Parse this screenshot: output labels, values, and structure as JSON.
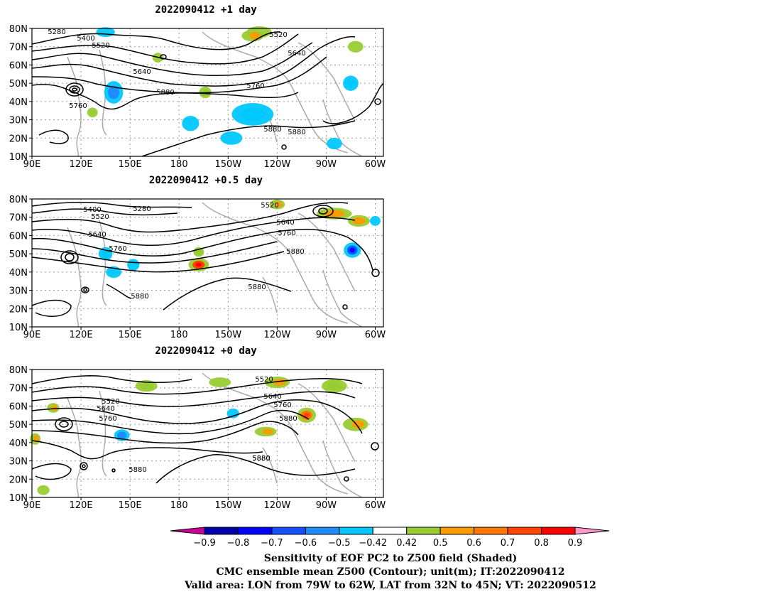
{
  "panels": [
    {
      "title": "2022090412 +1 day",
      "contour_labels": [
        "5280",
        "5400",
        "5520",
        "5520",
        "5640",
        "5640",
        "5760",
        "5760",
        "5880",
        "5880",
        "5880"
      ],
      "anomalies": [
        {
          "lon": 140,
          "lat": 45,
          "sign": "neg",
          "strength": 0.7,
          "size": [
            8,
            10
          ]
        },
        {
          "lon": 135,
          "lat": 78,
          "sign": "neg",
          "strength": 0.5,
          "size": [
            8,
            3
          ]
        },
        {
          "lon": 187,
          "lat": 28,
          "sign": "neg",
          "strength": 0.5,
          "size": [
            7,
            6
          ]
        },
        {
          "lon": 225,
          "lat": 33,
          "sign": "neg",
          "strength": 0.6,
          "size": [
            22,
            10
          ]
        },
        {
          "lon": 212,
          "lat": 20,
          "sign": "neg",
          "strength": 0.45,
          "size": [
            10,
            5
          ]
        },
        {
          "lon": 285,
          "lat": 50,
          "sign": "neg",
          "strength": 0.6,
          "size": [
            6,
            6
          ]
        },
        {
          "lon": 275,
          "lat": 17,
          "sign": "neg",
          "strength": 0.45,
          "size": [
            6,
            4
          ]
        },
        {
          "lon": 229,
          "lat": 78,
          "sign": "pos",
          "strength": 0.55,
          "size": [
            12,
            4
          ]
        },
        {
          "lon": 225,
          "lat": 76,
          "sign": "mix",
          "strength": 0.5,
          "size": [
            10,
            4
          ]
        },
        {
          "lon": 288,
          "lat": 70,
          "sign": "pos",
          "strength": 0.55,
          "size": [
            6,
            4
          ]
        },
        {
          "lon": 196,
          "lat": 45,
          "sign": "pos",
          "strength": 0.6,
          "size": [
            4,
            4
          ]
        },
        {
          "lon": 167,
          "lat": 64,
          "sign": "pos",
          "strength": 0.55,
          "size": [
            3,
            3
          ]
        },
        {
          "lon": 127,
          "lat": 34,
          "sign": "pos",
          "strength": 0.6,
          "size": [
            3,
            3
          ]
        }
      ]
    },
    {
      "title": "2022090412 +0.5 day",
      "contour_labels": [
        "5400",
        "5280",
        "5520",
        "5520",
        "5640",
        "5640",
        "5760",
        "5760",
        "5880",
        "5880",
        "5880"
      ],
      "anomalies": [
        {
          "lon": 135,
          "lat": 50,
          "sign": "neg",
          "strength": 0.6,
          "size": [
            5,
            5
          ]
        },
        {
          "lon": 140,
          "lat": 40,
          "sign": "neg",
          "strength": 0.5,
          "size": [
            6,
            4
          ]
        },
        {
          "lon": 152,
          "lat": 44,
          "sign": "neg",
          "strength": 0.5,
          "size": [
            4,
            4
          ]
        },
        {
          "lon": 286,
          "lat": 52,
          "sign": "neg",
          "strength": 0.75,
          "size": [
            7,
            6
          ]
        },
        {
          "lon": 300,
          "lat": 68,
          "sign": "neg",
          "strength": 0.5,
          "size": [
            3,
            3
          ]
        },
        {
          "lon": 192,
          "lat": 44,
          "sign": "pos",
          "strength": 0.85,
          "size": [
            9,
            5
          ]
        },
        {
          "lon": 192,
          "lat": 51,
          "sign": "pos",
          "strength": 0.6,
          "size": [
            3,
            3
          ]
        },
        {
          "lon": 275,
          "lat": 72,
          "sign": "pos",
          "strength": 0.65,
          "size": [
            18,
            4
          ]
        },
        {
          "lon": 290,
          "lat": 68,
          "sign": "pos",
          "strength": 0.7,
          "size": [
            10,
            4
          ]
        },
        {
          "lon": 240,
          "lat": 77,
          "sign": "mix",
          "strength": 0.5,
          "size": [
            6,
            3
          ]
        }
      ]
    },
    {
      "title": "2022090412 +0 day",
      "contour_labels": [
        "5520",
        "5520",
        "5640",
        "5640",
        "5760",
        "5760",
        "5880",
        "5880",
        "5880",
        "5880"
      ],
      "anomalies": [
        {
          "lon": 160,
          "lat": 71,
          "sign": "pos",
          "strength": 0.6,
          "size": [
            10,
            4
          ]
        },
        {
          "lon": 205,
          "lat": 73,
          "sign": "pos",
          "strength": 0.55,
          "size": [
            10,
            3
          ]
        },
        {
          "lon": 240,
          "lat": 73,
          "sign": "mix",
          "strength": 0.55,
          "size": [
            12,
            4
          ]
        },
        {
          "lon": 275,
          "lat": 71,
          "sign": "pos",
          "strength": 0.6,
          "size": [
            12,
            5
          ]
        },
        {
          "lon": 258,
          "lat": 55,
          "sign": "pos",
          "strength": 0.75,
          "size": [
            8,
            6
          ]
        },
        {
          "lon": 288,
          "lat": 50,
          "sign": "mix",
          "strength": 0.5,
          "size": [
            12,
            5
          ]
        },
        {
          "lon": 92,
          "lat": 42,
          "sign": "mix",
          "strength": 0.5,
          "size": [
            3,
            4
          ]
        },
        {
          "lon": 103,
          "lat": 59,
          "sign": "mix",
          "strength": 0.5,
          "size": [
            4,
            3
          ]
        },
        {
          "lon": 145,
          "lat": 44,
          "sign": "neg",
          "strength": 0.65,
          "size": [
            6,
            4
          ]
        },
        {
          "lon": 213,
          "lat": 56,
          "sign": "neg",
          "strength": 0.5,
          "size": [
            4,
            3
          ]
        },
        {
          "lon": 97,
          "lat": 14,
          "sign": "pos",
          "strength": 0.5,
          "size": [
            4,
            3
          ]
        },
        {
          "lon": 233,
          "lat": 46,
          "sign": "mix",
          "strength": 0.5,
          "size": [
            10,
            3
          ]
        }
      ]
    }
  ],
  "axes": {
    "lat_ticks": [
      "80N",
      "70N",
      "60N",
      "50N",
      "40N",
      "30N",
      "20N",
      "10N"
    ],
    "lon_ticks": [
      "90E",
      "120E",
      "150E",
      "180",
      "150W",
      "120W",
      "90W",
      "60W"
    ]
  },
  "colorbar": {
    "labels": [
      "−0.9",
      "−0.8",
      "−0.7",
      "−0.6",
      "−0.5",
      "−0.42",
      "0.42",
      "0.5",
      "0.6",
      "0.7",
      "0.8",
      "0.9"
    ],
    "colors": [
      "#0000aa",
      "#0000ff",
      "#1450ff",
      "#1e8cff",
      "#00c8ff",
      "#ffffff",
      "#99cc33",
      "#ff9900",
      "#ff7700",
      "#ff4400",
      "#ff0000"
    ],
    "left_arrow_color": "#cc0099",
    "right_arrow_color": "#ff99cc"
  },
  "captions": [
    "Sensitivity of EOF PC2 to Z500 field (Shaded)",
    "CMC ensemble mean Z500 (Contour); unit(m); IT:2022090412",
    "Valid area: LON from 79W to 62W, LAT from 32N to 45N; VT: 2022090512"
  ]
}
